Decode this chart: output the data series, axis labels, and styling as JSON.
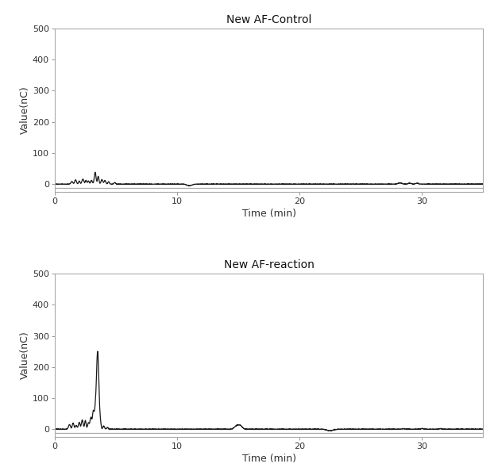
{
  "title1": "New AF-Control",
  "title2": "New AF-reaction",
  "xlabel": "Time (min)",
  "ylabel": "Value(nC)",
  "xlim": [
    0,
    35
  ],
  "ylim1": [
    -25,
    500
  ],
  "ylim2": [
    -25,
    500
  ],
  "yticks1": [
    0,
    100,
    200,
    300,
    400,
    500
  ],
  "yticks2": [
    0,
    100,
    200,
    300,
    400,
    500
  ],
  "xticks": [
    0,
    10,
    20,
    30
  ],
  "line_color": "#1a1a1a",
  "line_width": 0.9,
  "bg_color": "#ffffff",
  "spine_color": "#aaaaaa",
  "title_fontsize": 10,
  "label_fontsize": 9,
  "tick_fontsize": 8,
  "baseline_color": "#aaaaaa",
  "baseline_y": -13
}
